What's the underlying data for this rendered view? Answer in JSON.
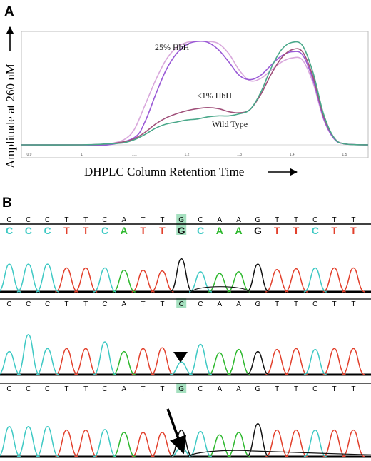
{
  "panels": {
    "a_label": "A",
    "b_label": "B"
  },
  "colors": {
    "wild_type": "#4aa88a",
    "lt1_hbh": "#a0507a",
    "hbh25": "#9a5ad6",
    "hbh25_light": "#d9a8dc",
    "base_A": "#2db82d",
    "base_C": "#3ec9c4",
    "base_T": "#e2402c",
    "base_G": "#111111",
    "highlight": "#a5e0bf"
  },
  "chart_data": [
    {
      "type": "line",
      "title": "",
      "xlabel": "DHPLC Column Retention Time",
      "ylabel": "Amplitude at 260 nM",
      "x_ticks": [
        "0.9",
        "1",
        "1.1",
        "1.2",
        "1.3",
        "1.4",
        "1.5"
      ],
      "xlim": [
        0.885,
        1.545
      ],
      "ylim": [
        -0.05,
        1.05
      ],
      "grid": false,
      "annotations": [
        "25% HbH",
        "<1% HbH",
        "Wild Type"
      ],
      "series": [
        {
          "name": "25% HbH",
          "color_key": "hbh25_light",
          "x": [
            0.885,
            1.0,
            1.05,
            1.08,
            1.1,
            1.12,
            1.14,
            1.16,
            1.18,
            1.2,
            1.22,
            1.24,
            1.26,
            1.28,
            1.3,
            1.32,
            1.34,
            1.36,
            1.38,
            1.4,
            1.42,
            1.44,
            1.46,
            1.48,
            1.5,
            1.545
          ],
          "y": [
            0.0,
            0.0,
            0.01,
            0.05,
            0.15,
            0.38,
            0.62,
            0.82,
            0.94,
            0.99,
            1.0,
            1.0,
            0.98,
            0.88,
            0.72,
            0.62,
            0.64,
            0.72,
            0.8,
            0.84,
            0.82,
            0.6,
            0.25,
            0.06,
            0.01,
            0.0
          ]
        },
        {
          "name": "25% HbH",
          "color_key": "hbh25",
          "x": [
            0.885,
            1.0,
            1.05,
            1.1,
            1.12,
            1.14,
            1.16,
            1.18,
            1.2,
            1.22,
            1.24,
            1.26,
            1.28,
            1.3,
            1.32,
            1.34,
            1.36,
            1.38,
            1.4,
            1.42,
            1.44,
            1.46,
            1.48,
            1.5,
            1.545
          ],
          "y": [
            0.0,
            0.0,
            0.0,
            0.07,
            0.22,
            0.48,
            0.72,
            0.88,
            0.97,
            1.0,
            0.99,
            0.92,
            0.8,
            0.67,
            0.63,
            0.67,
            0.77,
            0.86,
            0.9,
            0.87,
            0.63,
            0.26,
            0.06,
            0.01,
            0.0
          ]
        },
        {
          "name": "<1% HbH",
          "color_key": "lt1_hbh",
          "x": [
            0.885,
            1.0,
            1.05,
            1.08,
            1.1,
            1.12,
            1.14,
            1.16,
            1.18,
            1.2,
            1.22,
            1.24,
            1.26,
            1.28,
            1.3,
            1.32,
            1.34,
            1.36,
            1.38,
            1.4,
            1.42,
            1.44,
            1.46,
            1.48,
            1.5,
            1.545
          ],
          "y": [
            0.0,
            0.0,
            0.01,
            0.03,
            0.06,
            0.12,
            0.2,
            0.26,
            0.3,
            0.33,
            0.35,
            0.36,
            0.35,
            0.32,
            0.31,
            0.34,
            0.48,
            0.68,
            0.84,
            0.92,
            0.9,
            0.66,
            0.28,
            0.07,
            0.01,
            0.0
          ]
        },
        {
          "name": "Wild Type",
          "color_key": "wild_type",
          "x": [
            0.885,
            1.0,
            1.05,
            1.08,
            1.1,
            1.12,
            1.14,
            1.16,
            1.18,
            1.2,
            1.22,
            1.24,
            1.26,
            1.28,
            1.3,
            1.32,
            1.34,
            1.36,
            1.38,
            1.4,
            1.42,
            1.44,
            1.46,
            1.48,
            1.5,
            1.545
          ],
          "y": [
            0.0,
            0.0,
            0.01,
            0.02,
            0.05,
            0.1,
            0.16,
            0.2,
            0.22,
            0.24,
            0.25,
            0.27,
            0.28,
            0.28,
            0.3,
            0.34,
            0.5,
            0.74,
            0.92,
            0.99,
            0.96,
            0.7,
            0.3,
            0.07,
            0.01,
            0.0
          ]
        }
      ]
    },
    {
      "type": "line",
      "title": "",
      "annotations": [
        "arrowhead",
        "arrow"
      ],
      "tracks": [
        {
          "ref_bases": [
            "C",
            "C",
            "C",
            "T",
            "T",
            "C",
            "A",
            "T",
            "T",
            "G",
            "C",
            "A",
            "A",
            "G",
            "T",
            "T",
            "C",
            "T",
            "T"
          ],
          "called_bases": [
            "C",
            "C",
            "C",
            "T",
            "T",
            "C",
            "A",
            "T",
            "T",
            "G",
            "C",
            "A",
            "A",
            "G",
            "T",
            "T",
            "C",
            "T",
            "T"
          ],
          "highlight_index": 9,
          "peaks": {
            "C": [
              [
                0,
                0.72
              ],
              [
                1,
                0.72
              ],
              [
                2,
                0.72
              ],
              [
                5,
                0.62
              ],
              [
                10,
                0.52
              ],
              [
                16,
                0.62
              ]
            ],
            "T": [
              [
                3,
                0.62
              ],
              [
                4,
                0.62
              ],
              [
                7,
                0.56
              ],
              [
                8,
                0.54
              ],
              [
                14,
                0.58
              ],
              [
                15,
                0.6
              ],
              [
                17,
                0.62
              ],
              [
                18,
                0.62
              ]
            ],
            "A": [
              [
                6,
                0.56
              ],
              [
                11,
                0.48
              ],
              [
                12,
                0.52
              ]
            ],
            "G": [
              [
                9,
                0.86
              ],
              [
                13,
                0.72
              ]
            ]
          },
          "background": "hump_G"
        },
        {
          "ref_bases": [
            "C",
            "C",
            "C",
            "T",
            "T",
            "C",
            "A",
            "T",
            "T",
            "C",
            "C",
            "A",
            "A",
            "G",
            "T",
            "T",
            "C",
            "T",
            "T"
          ],
          "highlight_index": 9,
          "peaks": {
            "C": [
              [
                0,
                0.55
              ],
              [
                1,
                0.95
              ],
              [
                2,
                0.62
              ],
              [
                5,
                0.78
              ],
              [
                9,
                0.3
              ],
              [
                10,
                0.72
              ],
              [
                16,
                0.6
              ]
            ],
            "T": [
              [
                3,
                0.62
              ],
              [
                4,
                0.62
              ],
              [
                7,
                0.62
              ],
              [
                8,
                0.64
              ],
              [
                14,
                0.6
              ],
              [
                15,
                0.62
              ],
              [
                17,
                0.62
              ],
              [
                18,
                0.62
              ]
            ],
            "A": [
              [
                6,
                0.55
              ],
              [
                11,
                0.52
              ],
              [
                12,
                0.6
              ]
            ],
            "G": [
              [
                13,
                0.55
              ]
            ]
          },
          "background": "none"
        },
        {
          "ref_bases": [
            "C",
            "C",
            "C",
            "T",
            "T",
            "C",
            "A",
            "T",
            "T",
            "G",
            "C",
            "A",
            "A",
            "G",
            "T",
            "T",
            "C",
            "T",
            "T"
          ],
          "highlight_index": 9,
          "peaks": {
            "C": [
              [
                0,
                0.62
              ],
              [
                1,
                0.62
              ],
              [
                2,
                0.62
              ],
              [
                5,
                0.56
              ],
              [
                9,
                0.2
              ],
              [
                10,
                0.52
              ],
              [
                16,
                0.55
              ]
            ],
            "T": [
              [
                3,
                0.55
              ],
              [
                4,
                0.55
              ],
              [
                7,
                0.5
              ],
              [
                8,
                0.5
              ],
              [
                14,
                0.55
              ],
              [
                15,
                0.55
              ],
              [
                17,
                0.55
              ],
              [
                18,
                0.55
              ]
            ],
            "A": [
              [
                6,
                0.5
              ],
              [
                11,
                0.45
              ],
              [
                12,
                0.5
              ]
            ],
            "G": [
              [
                9,
                0.55
              ],
              [
                13,
                0.68
              ]
            ]
          },
          "background": "hump_long"
        }
      ]
    }
  ]
}
